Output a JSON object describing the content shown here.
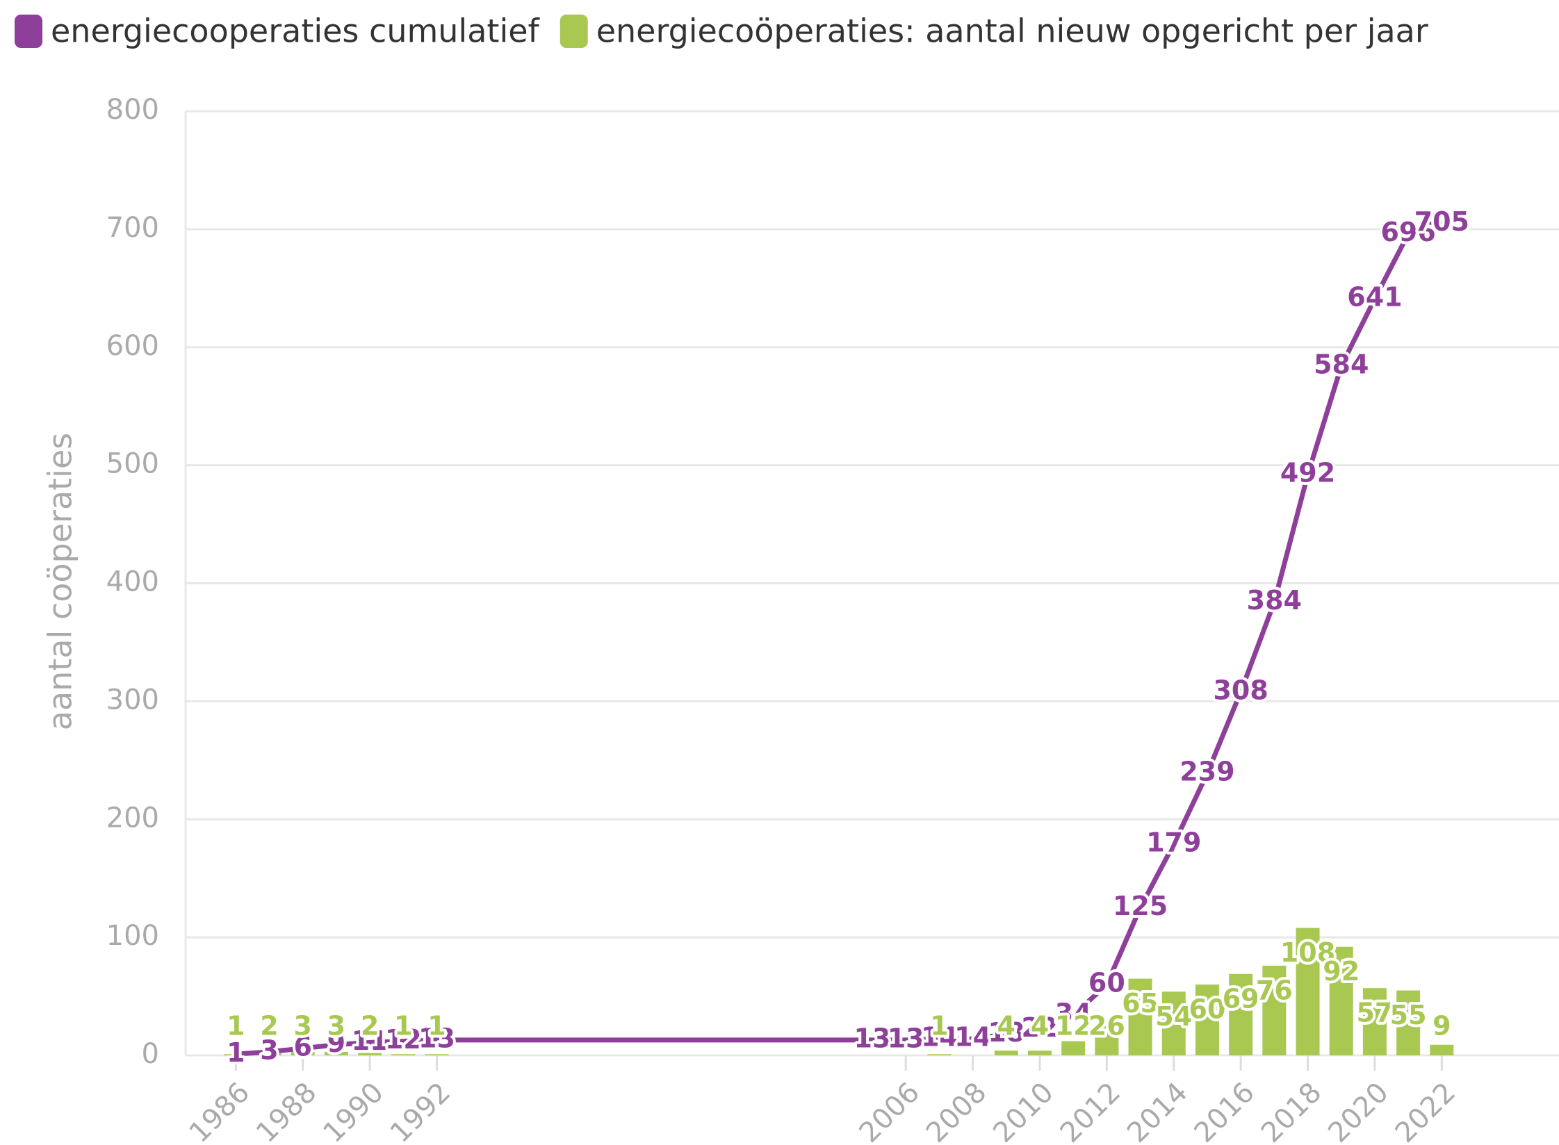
{
  "chart_data": {
    "type": "line-bar",
    "y_label": "aantal coöperaties",
    "x": [
      1986,
      1987,
      1988,
      1989,
      1990,
      1991,
      1992,
      2005,
      2006,
      2007,
      2008,
      2009,
      2010,
      2011,
      2012,
      2013,
      2014,
      2015,
      2016,
      2017,
      2018,
      2019,
      2020,
      2021,
      2022
    ],
    "series": [
      {
        "name": "energiecooperaties cumulatief",
        "color": "#8e3f9a",
        "kind": "line",
        "values": [
          1,
          3,
          6,
          9,
          11,
          12,
          13,
          13,
          13,
          14,
          14,
          18,
          22,
          34,
          60,
          125,
          179,
          239,
          308,
          384,
          492,
          584,
          641,
          696,
          705
        ]
      },
      {
        "name": "energiecoöperaties: aantal nieuw opgericht per jaar",
        "color": "#a8c852",
        "kind": "bar",
        "values": [
          1,
          2,
          3,
          3,
          2,
          1,
          1,
          null,
          null,
          1,
          null,
          4,
          4,
          12,
          26,
          65,
          54,
          60,
          69,
          76,
          108,
          92,
          57,
          55,
          9
        ]
      }
    ],
    "xlim": [
      1984.5,
      2025.5
    ],
    "xticks": [
      1986,
      1988,
      1990,
      1992,
      2006,
      2008,
      2010,
      2012,
      2014,
      2016,
      2018,
      2020,
      2022
    ],
    "ylim": [
      0,
      800
    ],
    "yticks": [
      0,
      100,
      200,
      300,
      400,
      500,
      600,
      700,
      800
    ],
    "grid": true,
    "legend": "top-left"
  }
}
